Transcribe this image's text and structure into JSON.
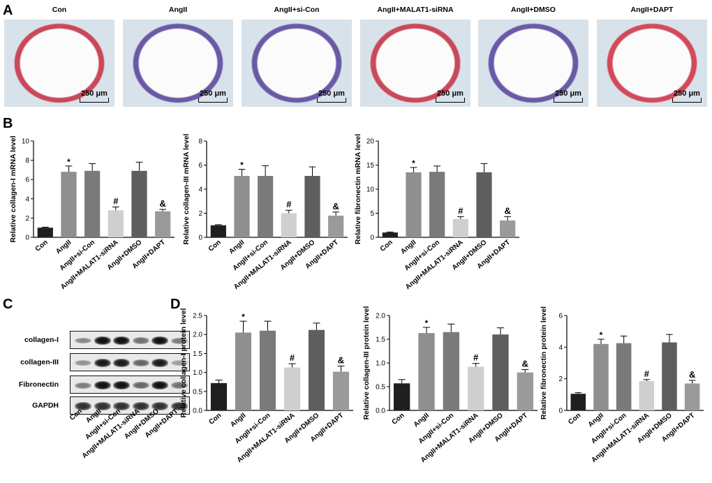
{
  "panel_letters": {
    "A": "A",
    "B": "B",
    "C": "C",
    "D": "D"
  },
  "groups": [
    "Con",
    "AngII",
    "AngII+si-Con",
    "AngII+MALAT1-siRNA",
    "AngII+DMSO",
    "AngII+DAPT"
  ],
  "histology": {
    "panels": [
      {
        "title": "Con",
        "scale": "250 μm",
        "stain_color": "#c9485a"
      },
      {
        "title": "AngII",
        "scale": "250 μm",
        "stain_color": "#6a5aa6"
      },
      {
        "title": "AngII+si-Con",
        "scale": "250 μm",
        "stain_color": "#6a5aa6"
      },
      {
        "title": "AngII+MALAT1-siRNA",
        "scale": "250 μm",
        "stain_color": "#c9485a"
      },
      {
        "title": "AngII+DMSO",
        "scale": "250 μm",
        "stain_color": "#6a5aa6"
      },
      {
        "title": "AngII+DAPT",
        "scale": "250 μm",
        "stain_color": "#d24a5a"
      }
    ]
  },
  "western_blot": {
    "rows": [
      {
        "label": "collagen-I",
        "intensity": [
          0.45,
          1.0,
          1.0,
          0.55,
          1.0,
          0.5
        ]
      },
      {
        "label": "collagen-III",
        "intensity": [
          0.4,
          0.95,
          0.95,
          0.6,
          0.95,
          0.35
        ]
      },
      {
        "label": "Fibronectin",
        "intensity": [
          0.5,
          1.0,
          1.0,
          0.6,
          1.0,
          0.55
        ]
      },
      {
        "label": "GAPDH",
        "intensity": [
          0.85,
          0.85,
          0.85,
          0.85,
          0.85,
          0.85
        ]
      }
    ],
    "lane_labels": [
      "Con",
      "AngII",
      "AngII+si-Con",
      "AngII+MALAT1-siRNA",
      "AngII+DMSO",
      "AngII+DAPT"
    ]
  },
  "bar_colors": [
    "#1f1f1f",
    "#8f8f8f",
    "#7a7a7a",
    "#cfcfcf",
    "#5e5e5e",
    "#9a9a9a"
  ],
  "chart_data": [
    {
      "type": "bar",
      "ylabel": "Relative collagen-I mRNA level",
      "categories": [
        "Con",
        "AngII",
        "AngII+si-Con",
        "AngII+MALAT1-siRNA",
        "AngII+DMSO",
        "AngII+DAPT"
      ],
      "values": [
        1.0,
        6.8,
        6.9,
        2.8,
        6.9,
        2.7
      ],
      "errors": [
        0.05,
        0.6,
        0.75,
        0.35,
        0.9,
        0.2
      ],
      "annotations": [
        "",
        "*",
        "",
        "#",
        "",
        "&"
      ],
      "ylim": [
        0,
        10
      ],
      "yticks": [
        0,
        2,
        4,
        6,
        8,
        10
      ],
      "tick_labels": [
        "0",
        "2",
        "4",
        "6",
        "8",
        "10"
      ]
    },
    {
      "type": "bar",
      "ylabel": "Relative collagen-III mRNA level",
      "categories": [
        "Con",
        "AngII",
        "AngII+si-Con",
        "AngII+MALAT1-siRNA",
        "AngII+DMSO",
        "AngII+DAPT"
      ],
      "values": [
        1.0,
        5.1,
        5.1,
        2.0,
        5.1,
        1.8
      ],
      "errors": [
        0.05,
        0.55,
        0.85,
        0.25,
        0.75,
        0.3
      ],
      "annotations": [
        "",
        "*",
        "",
        "#",
        "",
        "&"
      ],
      "ylim": [
        0,
        8
      ],
      "yticks": [
        0,
        2,
        4,
        6,
        8
      ],
      "tick_labels": [
        "0",
        "2",
        "4",
        "6",
        "8"
      ]
    },
    {
      "type": "bar",
      "ylabel": "Relative fibronectin mRNA level",
      "categories": [
        "Con",
        "AngII",
        "AngII+si-Con",
        "AngII+MALAT1-siRNA",
        "AngII+DMSO",
        "AngII+DAPT"
      ],
      "values": [
        1.0,
        13.5,
        13.6,
        3.8,
        13.5,
        3.5
      ],
      "errors": [
        0.1,
        1.0,
        1.2,
        0.5,
        1.8,
        0.8
      ],
      "annotations": [
        "",
        "*",
        "",
        "#",
        "",
        "&"
      ],
      "ylim": [
        0,
        20
      ],
      "yticks": [
        0,
        5,
        10,
        15,
        20
      ],
      "tick_labels": [
        "0",
        "5",
        "10",
        "15",
        "20"
      ]
    },
    {
      "type": "bar",
      "ylabel": "Relative collagen-I protein level",
      "categories": [
        "Con",
        "AngII",
        "AngII+si-Con",
        "AngII+MALAT1-siRNA",
        "AngII+DMSO",
        "AngII+DAPT"
      ],
      "values": [
        0.72,
        2.05,
        2.1,
        1.13,
        2.12,
        1.02
      ],
      "errors": [
        0.08,
        0.3,
        0.25,
        0.1,
        0.18,
        0.15
      ],
      "annotations": [
        "",
        "*",
        "",
        "#",
        "",
        "&"
      ],
      "ylim": [
        0,
        2.5
      ],
      "yticks": [
        0,
        0.5,
        1.0,
        1.5,
        2.0,
        2.5
      ],
      "tick_labels": [
        "0.0",
        "0.5",
        "1.0",
        "1.5",
        "2.0",
        "2.5"
      ]
    },
    {
      "type": "bar",
      "ylabel": "Relative collagen-III protein level",
      "categories": [
        "Con",
        "AngII",
        "AngII+si-Con",
        "AngII+MALAT1-siRNA",
        "AngII+DMSO",
        "AngII+DAPT"
      ],
      "values": [
        0.57,
        1.63,
        1.65,
        0.92,
        1.6,
        0.8
      ],
      "errors": [
        0.08,
        0.12,
        0.17,
        0.07,
        0.14,
        0.06
      ],
      "annotations": [
        "",
        "*",
        "",
        "#",
        "",
        "&"
      ],
      "ylim": [
        0,
        2.0
      ],
      "yticks": [
        0,
        0.5,
        1.0,
        1.5,
        2.0
      ],
      "tick_labels": [
        "0.0",
        "0.5",
        "1.0",
        "1.5",
        "2.0"
      ]
    },
    {
      "type": "bar",
      "ylabel": "Relative fibronectin protein level",
      "categories": [
        "Con",
        "AngII",
        "AngII+si-Con",
        "AngII+MALAT1-siRNA",
        "AngII+DMSO",
        "AngII+DAPT"
      ],
      "values": [
        1.05,
        4.2,
        4.25,
        1.85,
        4.3,
        1.7
      ],
      "errors": [
        0.07,
        0.3,
        0.45,
        0.1,
        0.5,
        0.2
      ],
      "annotations": [
        "",
        "*",
        "",
        "#",
        "",
        "&"
      ],
      "ylim": [
        0,
        6
      ],
      "yticks": [
        0,
        2,
        4,
        6
      ],
      "tick_labels": [
        "0",
        "2",
        "4",
        "6"
      ]
    }
  ]
}
